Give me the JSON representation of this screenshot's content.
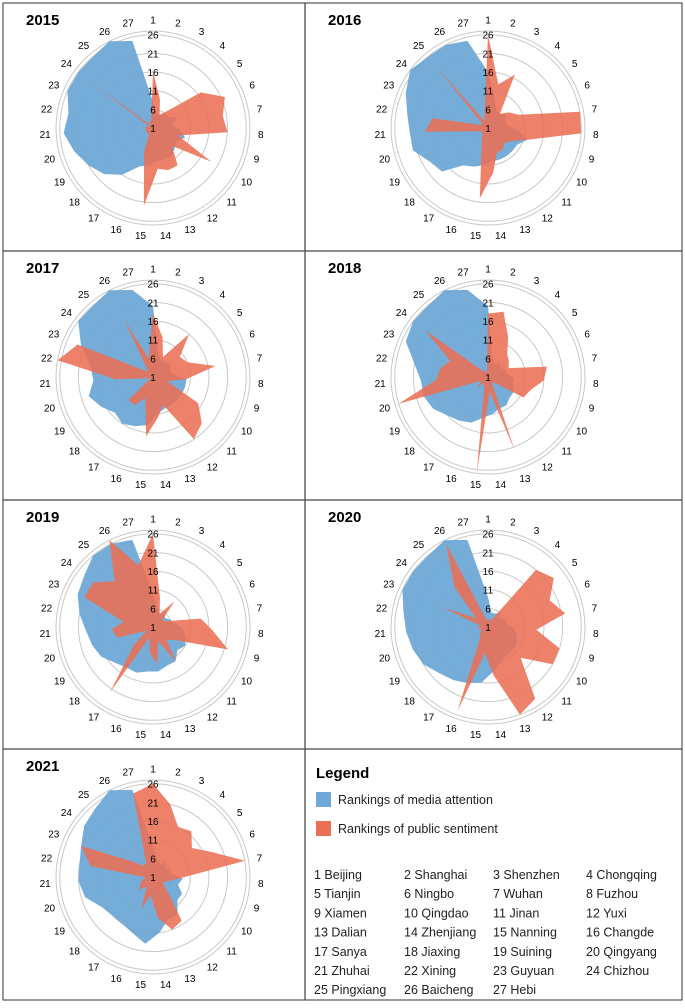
{
  "chart_data": [
    {
      "type": "radar",
      "title": "2015",
      "categories": [
        "1",
        "2",
        "3",
        "4",
        "5",
        "6",
        "7",
        "8",
        "9",
        "10",
        "11",
        "12",
        "13",
        "14",
        "15",
        "16",
        "17",
        "18",
        "19",
        "20",
        "21",
        "22",
        "23",
        "24",
        "25",
        "26",
        "27"
      ],
      "radial_ticks": [
        "1",
        "6",
        "11",
        "16",
        "21",
        "26"
      ],
      "rlim": [
        1,
        27
      ],
      "series": [
        {
          "name": "Rankings of media attention",
          "values": [
            8,
            5,
            5,
            6,
            6,
            8,
            6,
            8,
            10,
            8,
            9,
            10,
            10,
            10,
            11,
            12,
            16,
            19,
            21,
            23,
            25,
            24,
            26,
            26,
            26,
            27,
            25
          ]
        },
        {
          "name": "Rankings of public sentiment",
          "values": [
            16,
            9,
            5,
            7,
            17,
            22,
            20,
            21,
            8,
            19,
            8,
            13,
            13,
            12,
            22,
            8,
            3,
            3,
            3,
            3,
            3,
            3,
            2,
            21,
            2,
            3,
            3
          ]
        }
      ]
    },
    {
      "type": "radar",
      "title": "2016",
      "categories": [
        "1",
        "2",
        "3",
        "4",
        "5",
        "6",
        "7",
        "8",
        "9",
        "10",
        "11",
        "12",
        "13",
        "14",
        "15",
        "16",
        "17",
        "18",
        "19",
        "20",
        "21",
        "22",
        "23",
        "24",
        "25",
        "26",
        "27"
      ],
      "radial_ticks": [
        "1",
        "6",
        "11",
        "16",
        "21",
        "26"
      ],
      "rlim": [
        1,
        27
      ],
      "series": [
        {
          "name": "Rankings of media attention",
          "values": [
            16,
            9,
            6,
            6,
            7,
            6,
            6,
            9,
            12,
            10,
            10,
            10,
            10,
            10,
            11,
            12,
            13,
            18,
            19,
            22,
            22,
            23,
            25,
            27,
            26,
            26,
            25
          ]
        },
        {
          "name": "Rankings of public sentiment",
          "values": [
            26,
            13,
            17,
            6,
            8,
            10,
            26,
            26,
            12,
            8,
            7,
            8,
            8,
            13,
            20,
            6,
            4,
            3,
            3,
            4,
            18,
            16,
            3,
            3,
            22,
            3,
            5
          ]
        }
      ]
    },
    {
      "type": "radar",
      "title": "2017",
      "categories": [
        "1",
        "2",
        "3",
        "4",
        "5",
        "6",
        "7",
        "8",
        "9",
        "10",
        "11",
        "12",
        "13",
        "14",
        "15",
        "16",
        "17",
        "18",
        "19",
        "20",
        "21",
        "22",
        "23",
        "24",
        "25",
        "26",
        "27"
      ],
      "radial_ticks": [
        "1",
        "6",
        "11",
        "16",
        "21",
        "26"
      ],
      "rlim": [
        1,
        27
      ],
      "series": [
        {
          "name": "Rankings of media attention",
          "values": [
            20,
            7,
            6,
            6,
            7,
            6,
            6,
            10,
            10,
            10,
            10,
            10,
            10,
            11,
            14,
            15,
            16,
            15,
            17,
            19,
            17,
            18,
            22,
            26,
            26,
            27,
            25
          ]
        },
        {
          "name": "Rankings of public sentiment",
          "values": [
            18,
            12,
            7,
            16,
            10,
            11,
            18,
            10,
            5,
            15,
            19,
            21,
            9,
            12,
            17,
            7,
            10,
            10,
            2,
            2,
            11,
            27,
            23,
            4,
            3,
            18,
            6
          ]
        }
      ]
    },
    {
      "type": "radar",
      "title": "2018",
      "categories": [
        "1",
        "2",
        "3",
        "4",
        "5",
        "6",
        "7",
        "8",
        "9",
        "10",
        "11",
        "12",
        "13",
        "14",
        "15",
        "16",
        "17",
        "18",
        "19",
        "20",
        "21",
        "22",
        "23",
        "24",
        "25",
        "26",
        "27"
      ],
      "radial_ticks": [
        "1",
        "6",
        "11",
        "16",
        "21",
        "26"
      ],
      "rlim": [
        1,
        27
      ],
      "series": [
        {
          "name": "Rankings of media attention",
          "values": [
            20,
            6,
            5,
            6,
            5,
            6,
            6,
            8,
            8,
            9,
            9,
            10,
            10,
            11,
            12,
            14,
            15,
            16,
            18,
            19,
            19,
            21,
            25,
            26,
            26,
            27,
            25
          ]
        },
        {
          "name": "Rankings of public sentiment",
          "values": [
            18,
            19,
            13,
            9,
            8,
            7,
            17,
            16,
            13,
            12,
            3,
            3,
            22,
            5,
            27,
            4,
            3,
            5,
            3,
            26,
            15,
            14,
            12,
            22,
            3,
            3,
            2
          ]
        }
      ]
    },
    {
      "type": "radar",
      "title": "2019",
      "categories": [
        "1",
        "2",
        "3",
        "4",
        "5",
        "6",
        "7",
        "8",
        "9",
        "10",
        "11",
        "12",
        "13",
        "14",
        "15",
        "16",
        "17",
        "18",
        "19",
        "20",
        "21",
        "22",
        "23",
        "24",
        "25",
        "26",
        "27"
      ],
      "radial_ticks": [
        "1",
        "6",
        "11",
        "16",
        "21",
        "26"
      ],
      "rlim": [
        1,
        27
      ],
      "series": [
        {
          "name": "Rankings of media attention",
          "values": [
            10,
            6,
            5,
            6,
            5,
            6,
            7,
            9,
            10,
            11,
            10,
            12,
            12,
            13,
            13,
            14,
            14,
            15,
            17,
            18,
            19,
            21,
            23,
            24,
            26,
            26,
            25
          ]
        },
        {
          "name": "Rankings of public sentiment",
          "values": [
            26,
            9,
            5,
            10,
            4,
            5,
            14,
            17,
            22,
            8,
            6,
            12,
            5,
            11,
            8,
            4,
            22,
            8,
            3,
            11,
            12,
            9,
            21,
            21,
            17,
            27,
            18
          ]
        }
      ]
    },
    {
      "type": "radar",
      "title": "2020",
      "categories": [
        "1",
        "2",
        "3",
        "4",
        "5",
        "6",
        "7",
        "8",
        "9",
        "10",
        "11",
        "12",
        "13",
        "14",
        "15",
        "16",
        "17",
        "18",
        "19",
        "20",
        "21",
        "22",
        "23",
        "24",
        "25",
        "26",
        "27"
      ],
      "radial_ticks": [
        "1",
        "6",
        "11",
        "16",
        "21",
        "26"
      ],
      "rlim": [
        1,
        27
      ],
      "series": [
        {
          "name": "Rankings of media attention",
          "values": [
            9,
            5,
            5,
            6,
            5,
            6,
            6,
            8,
            9,
            10,
            10,
            10,
            11,
            13,
            16,
            17,
            18,
            19,
            21,
            22,
            23,
            24,
            26,
            26,
            26,
            27,
            25
          ]
        },
        {
          "name": "Rankings of public sentiment",
          "values": [
            3,
            3,
            3,
            21,
            23,
            19,
            22,
            14,
            21,
            21,
            13,
            24,
            26,
            14,
            8,
            25,
            5,
            4,
            3,
            3,
            4,
            3,
            14,
            5,
            15,
            26,
            3
          ]
        }
      ]
    },
    {
      "type": "radar",
      "title": "2021",
      "categories": [
        "1",
        "2",
        "3",
        "4",
        "5",
        "6",
        "7",
        "8",
        "9",
        "10",
        "11",
        "12",
        "13",
        "14",
        "15",
        "16",
        "17",
        "18",
        "19",
        "20",
        "21",
        "22",
        "23",
        "24",
        "25",
        "26",
        "27"
      ],
      "radial_ticks": [
        "1",
        "6",
        "11",
        "16",
        "21",
        "26"
      ],
      "rlim": [
        1,
        27
      ],
      "series": [
        {
          "name": "Rankings of media attention",
          "values": [
            9,
            6,
            5,
            6,
            5,
            6,
            6,
            9,
            8,
            10,
            10,
            13,
            13,
            16,
            19,
            17,
            16,
            16,
            17,
            20,
            21,
            21,
            22,
            24,
            25,
            27,
            25
          ]
        },
        {
          "name": "Rankings of public sentiment",
          "values": [
            26,
            21,
            16,
            17,
            14,
            18,
            26,
            8,
            5,
            4,
            6,
            15,
            16,
            12,
            6,
            10,
            4,
            6,
            5,
            4,
            3,
            18,
            22,
            8,
            5,
            5,
            24
          ]
        }
      ]
    }
  ],
  "colors": {
    "media": "#6FA8D6",
    "sentiment": "#EA6F55",
    "grid": "#c8c8c8",
    "frame": "#555555"
  },
  "legend": {
    "title": "Legend",
    "media_label": "Rankings of media attention",
    "sentiment_label": "Rankings of public sentiment"
  },
  "cities": [
    "1 Beijing",
    "2 Shanghai",
    "3 Shenzhen",
    "4 Chongqing",
    "5 Tianjin",
    "6 Ningbo",
    "7 Wuhan",
    "8 Fuzhou",
    "9 Xiamen",
    "10 Qingdao",
    "11 Jinan",
    "12 Yuxi",
    "13 Dalian",
    "14 Zhenjiang",
    "15 Nanning",
    "16 Changde",
    "17 Sanya",
    "18 Jiaxing",
    "19 Suining",
    "20 Qingyang",
    "21 Zhuhai",
    "22 Xining",
    "23 Guyuan",
    "24 Chizhou",
    "25 Pingxiang",
    "26 Baicheng",
    "27 Hebi"
  ]
}
